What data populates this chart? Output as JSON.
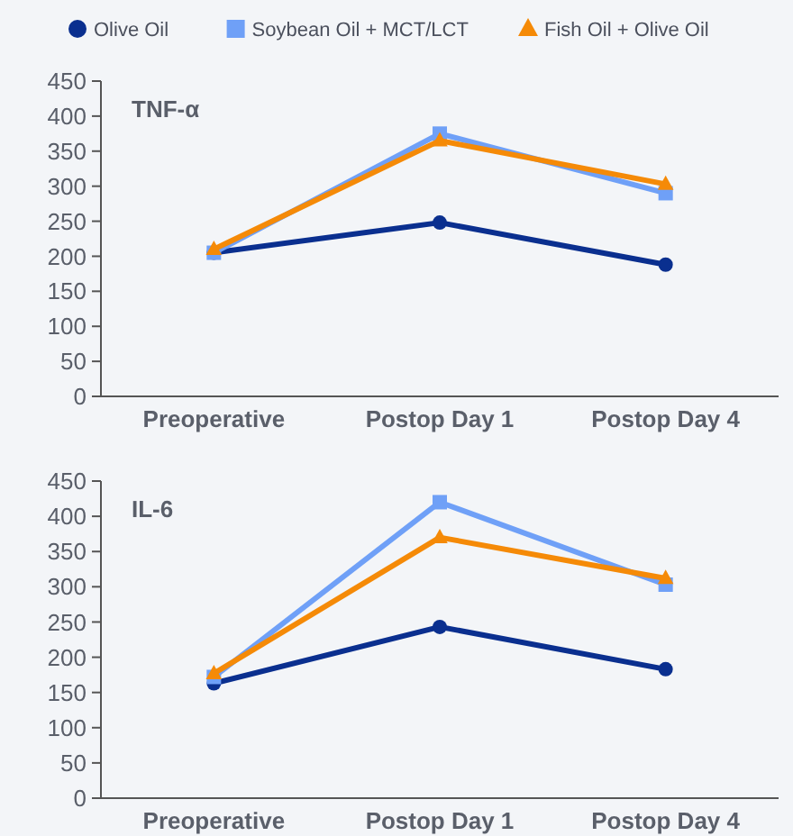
{
  "chart_data": [
    {
      "type": "line",
      "title": "TNF-α",
      "categories": [
        "Preoperative",
        "Postop Day 1",
        "Postop Day 4"
      ],
      "ylim": [
        0,
        450
      ],
      "yticks": [
        0,
        50,
        100,
        150,
        200,
        250,
        300,
        350,
        400,
        450
      ],
      "legend": "top",
      "grid": false,
      "series": [
        {
          "name": "Olive Oil",
          "color": "#0a2f8f",
          "marker": "circle",
          "values": [
            205,
            248,
            188
          ]
        },
        {
          "name": "Soybean Oil + MCT/LCT",
          "color": "#6fa0f7",
          "marker": "square",
          "values": [
            205,
            375,
            290
          ]
        },
        {
          "name": "Fish Oil + Olive Oil",
          "color": "#f58a07",
          "marker": "triangle",
          "values": [
            210,
            365,
            303
          ]
        }
      ]
    },
    {
      "type": "line",
      "title": "IL-6",
      "categories": [
        "Preoperative",
        "Postop Day 1",
        "Postop Day 4"
      ],
      "ylim": [
        0,
        450
      ],
      "yticks": [
        0,
        50,
        100,
        150,
        200,
        250,
        300,
        350,
        400,
        450
      ],
      "legend": false,
      "grid": false,
      "series": [
        {
          "color": "#0a2f8f",
          "marker": "circle",
          "values": [
            163,
            243,
            183
          ]
        },
        {
          "color": "#6fa0f7",
          "marker": "square",
          "values": [
            172,
            420,
            303
          ]
        },
        {
          "color": "#f58a07",
          "marker": "triangle",
          "values": [
            177,
            370,
            312
          ]
        }
      ]
    }
  ]
}
